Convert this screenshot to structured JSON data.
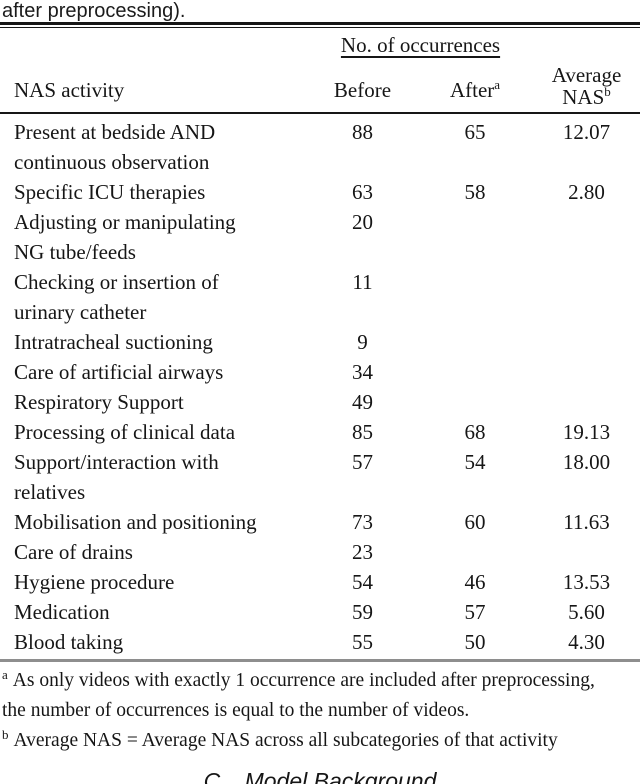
{
  "caption_tail": "after preprocessing).",
  "table": {
    "group_header": "No. of occurrences",
    "columns": {
      "activity": "NAS activity",
      "before": "Before",
      "after": {
        "label": "After",
        "sup": "a"
      },
      "average": {
        "line1": "Average",
        "line2": "NAS",
        "sup": "b"
      }
    },
    "rows": [
      {
        "activity": "Present at bedside AND\ncontinuous observation",
        "before": "88",
        "after": "65",
        "avg": "12.07"
      },
      {
        "activity": "Specific ICU therapies",
        "before": "63",
        "after": "58",
        "avg": "2.80"
      },
      {
        "activity": "Adjusting or manipulating\nNG tube/feeds",
        "before": "20",
        "after": "",
        "avg": ""
      },
      {
        "activity": "Checking or insertion of\nurinary catheter",
        "before": "11",
        "after": "",
        "avg": ""
      },
      {
        "activity": "Intratracheal suctioning",
        "before": "9",
        "after": "",
        "avg": ""
      },
      {
        "activity": "Care of artificial airways",
        "before": "34",
        "after": "",
        "avg": ""
      },
      {
        "activity": "Respiratory Support",
        "before": "49",
        "after": "",
        "avg": ""
      },
      {
        "activity": "Processing of clinical data",
        "before": "85",
        "after": "68",
        "avg": "19.13"
      },
      {
        "activity": "Support/interaction with\nrelatives",
        "before": "57",
        "after": "54",
        "avg": "18.00"
      },
      {
        "activity": "Mobilisation and positioning",
        "before": "73",
        "after": "60",
        "avg": "11.63"
      },
      {
        "activity": "Care of drains",
        "before": "23",
        "after": "",
        "avg": ""
      },
      {
        "activity": "Hygiene procedure",
        "before": "54",
        "after": "46",
        "avg": "13.53"
      },
      {
        "activity": "Medication",
        "before": "59",
        "after": "57",
        "avg": "5.60"
      },
      {
        "activity": "Blood taking",
        "before": "55",
        "after": "50",
        "avg": "4.30"
      }
    ]
  },
  "footnotes": [
    {
      "marker": "a",
      "text": "As only videos with exactly 1 occurrence are included after preprocessing,\nthe number of occurrences is equal to the number of videos."
    },
    {
      "marker": "b",
      "text": "Average NAS = Average NAS across all subcategories of that activity"
    }
  ],
  "section_heading": {
    "number": "C.",
    "title": "Model Background"
  }
}
